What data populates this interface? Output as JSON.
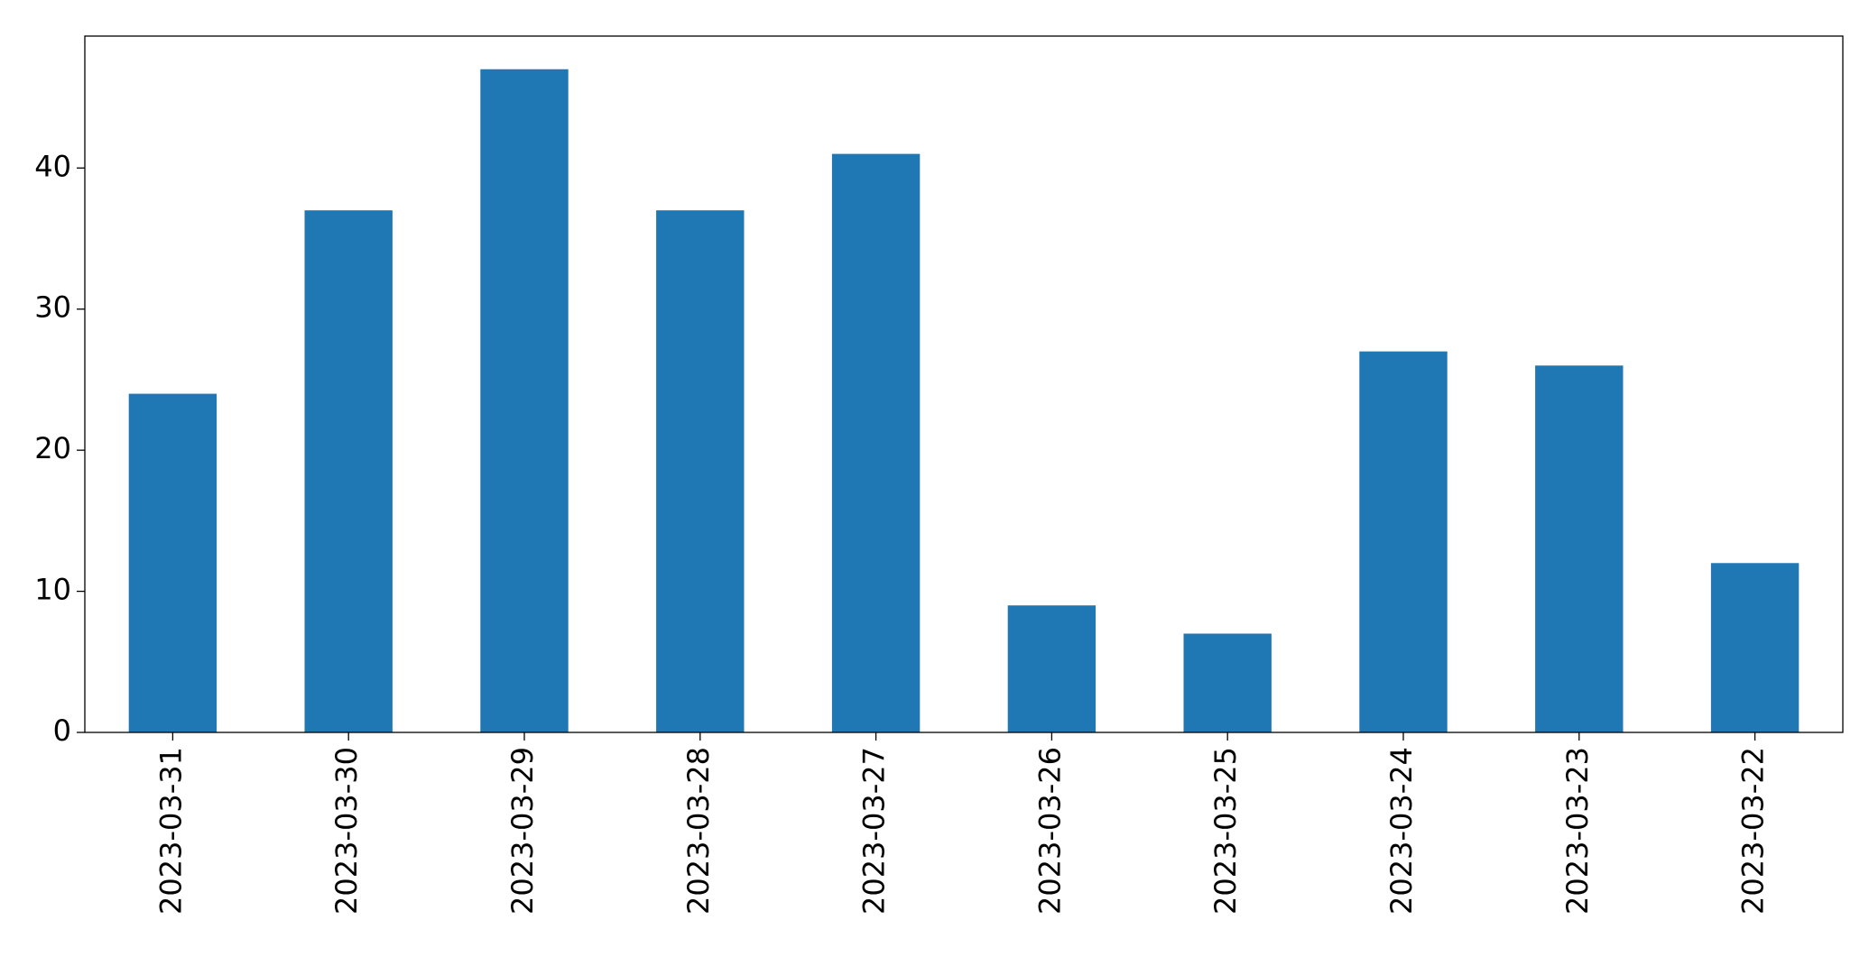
{
  "chart_data": {
    "type": "bar",
    "categories": [
      "2023-03-31",
      "2023-03-30",
      "2023-03-29",
      "2023-03-28",
      "2023-03-27",
      "2023-03-26",
      "2023-03-25",
      "2023-03-24",
      "2023-03-23",
      "2023-03-22"
    ],
    "values": [
      24,
      37,
      47,
      37,
      41,
      9,
      7,
      27,
      26,
      12
    ],
    "color": "#1f77b4",
    "ylim": [
      0,
      49.35
    ],
    "yticks": [
      0,
      10,
      20,
      30,
      40
    ],
    "grid": false
  }
}
